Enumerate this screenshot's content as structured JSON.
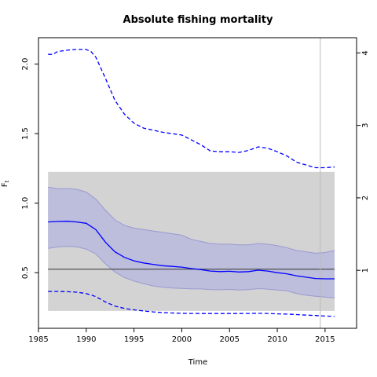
{
  "chart_data": {
    "type": "line",
    "title": "Absolute fishing mortality",
    "xlabel": "Time",
    "ylabel": "F",
    "ylabel_sub": "t",
    "xlim": [
      1985,
      2018.3
    ],
    "ylim": [
      0.1,
      2.19
    ],
    "y2lim": [
      0.2,
      4.21
    ],
    "x_ticks": [
      1985,
      1990,
      1995,
      2000,
      2005,
      2010,
      2015
    ],
    "y_ticks": [
      0.5,
      1.0,
      1.5,
      2.0
    ],
    "y_tick_labels": [
      "0.5",
      "1.0",
      "1.5",
      "2.0"
    ],
    "y2_ticks": [
      1,
      2,
      3,
      4
    ],
    "reference_band": {
      "x": [
        1986,
        2016
      ],
      "y": [
        0.225,
        1.225
      ],
      "color": "#d3d3d3"
    },
    "reference_line": {
      "y": 0.525,
      "color": "#333333"
    },
    "vertical_line": {
      "x": 2014.5,
      "color": "#bbbbbb"
    },
    "series": [
      {
        "role": "estimate",
        "color": "#0000ff",
        "x": [
          1986,
          1987,
          1988,
          1989,
          1990,
          1991,
          1992,
          1993,
          1994,
          1995,
          1996,
          1997,
          1998,
          1999,
          2000,
          2001,
          2002,
          2003,
          2004,
          2005,
          2006,
          2007,
          2008,
          2009,
          2010,
          2011,
          2012,
          2013,
          2014,
          2015,
          2016
        ],
        "y": [
          0.865,
          0.868,
          0.87,
          0.865,
          0.855,
          0.81,
          0.72,
          0.65,
          0.61,
          0.585,
          0.57,
          0.56,
          0.55,
          0.545,
          0.54,
          0.53,
          0.522,
          0.512,
          0.508,
          0.51,
          0.505,
          0.508,
          0.518,
          0.512,
          0.5,
          0.492,
          0.478,
          0.468,
          0.458,
          0.456,
          0.456
        ]
      },
      {
        "role": "ci-upper",
        "color": "#0000ff",
        "x": [
          1986,
          1987,
          1988,
          1989,
          1990,
          1991,
          1992,
          1993,
          1994,
          1995,
          1996,
          1997,
          1998,
          1999,
          2000,
          2001,
          2002,
          2003,
          2004,
          2005,
          2006,
          2007,
          2008,
          2009,
          2010,
          2011,
          2012,
          2013,
          2014,
          2015,
          2016
        ],
        "y": [
          1.115,
          1.105,
          1.105,
          1.1,
          1.08,
          1.03,
          0.95,
          0.88,
          0.84,
          0.82,
          0.81,
          0.8,
          0.79,
          0.78,
          0.77,
          0.74,
          0.725,
          0.71,
          0.705,
          0.705,
          0.7,
          0.7,
          0.71,
          0.705,
          0.695,
          0.68,
          0.66,
          0.65,
          0.64,
          0.645,
          0.66
        ]
      },
      {
        "role": "ci-lower",
        "color": "#0000ff",
        "x": [
          1986,
          1987,
          1988,
          1989,
          1990,
          1991,
          1992,
          1993,
          1994,
          1995,
          1996,
          1997,
          1998,
          1999,
          2000,
          2001,
          2002,
          2003,
          2004,
          2005,
          2006,
          2007,
          2008,
          2009,
          2010,
          2011,
          2012,
          2013,
          2014,
          2015,
          2016
        ],
        "y": [
          0.675,
          0.685,
          0.69,
          0.685,
          0.67,
          0.635,
          0.565,
          0.505,
          0.465,
          0.44,
          0.42,
          0.405,
          0.395,
          0.39,
          0.387,
          0.384,
          0.383,
          0.378,
          0.377,
          0.38,
          0.375,
          0.378,
          0.385,
          0.382,
          0.375,
          0.37,
          0.35,
          0.338,
          0.33,
          0.325,
          0.318
        ]
      },
      {
        "role": "upper-dashed",
        "color": "#0000ff",
        "style": "dashed",
        "x": [
          1986,
          1986.5,
          1987,
          1988,
          1989,
          1990,
          1990.5,
          1991,
          1992,
          1993,
          1994,
          1995,
          1996,
          1997,
          1998,
          1999,
          2000,
          2001,
          2002,
          2003,
          2004,
          2005,
          2006,
          2007,
          2008,
          2009,
          2010,
          2011,
          2012,
          2013,
          2014,
          2015,
          2016
        ],
        "y": [
          2.07,
          2.07,
          2.09,
          2.1,
          2.105,
          2.105,
          2.09,
          2.05,
          1.9,
          1.74,
          1.64,
          1.575,
          1.54,
          1.525,
          1.51,
          1.5,
          1.49,
          1.455,
          1.42,
          1.375,
          1.37,
          1.37,
          1.365,
          1.38,
          1.405,
          1.395,
          1.37,
          1.34,
          1.295,
          1.275,
          1.255,
          1.255,
          1.26
        ]
      },
      {
        "role": "lower-dashed",
        "color": "#0000ff",
        "style": "dashed",
        "x": [
          1986,
          1987,
          1988,
          1989,
          1990,
          1991,
          1992,
          1993,
          1994,
          1995,
          1996,
          1997,
          1998,
          1999,
          2000,
          2001,
          2002,
          2003,
          2004,
          2005,
          2006,
          2007,
          2008,
          2009,
          2010,
          2011,
          2012,
          2013,
          2014,
          2015,
          2016
        ],
        "y": [
          0.365,
          0.365,
          0.363,
          0.36,
          0.35,
          0.328,
          0.29,
          0.26,
          0.243,
          0.233,
          0.225,
          0.218,
          0.213,
          0.21,
          0.208,
          0.207,
          0.206,
          0.206,
          0.206,
          0.206,
          0.206,
          0.207,
          0.208,
          0.207,
          0.204,
          0.202,
          0.199,
          0.195,
          0.192,
          0.188,
          0.186
        ]
      }
    ],
    "colors": {
      "band_fill": "#b8b8dd",
      "band_edge": "#9a9ad2",
      "line": "#0000ff",
      "axis": "#000000"
    }
  }
}
